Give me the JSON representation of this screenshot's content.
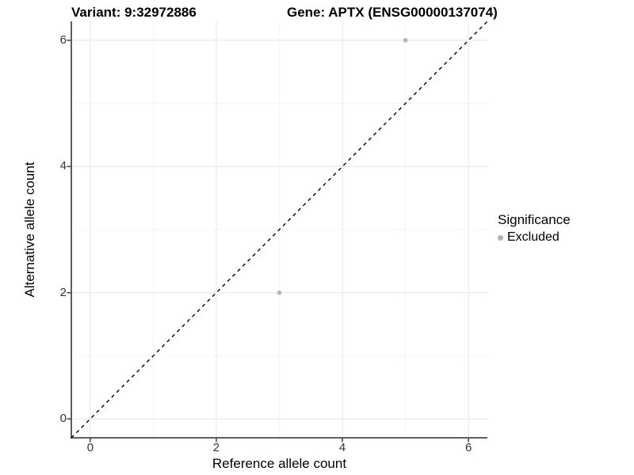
{
  "title": {
    "left": "Variant: 9:32972886",
    "right": "Gene: APTX (ENSG00000137074)"
  },
  "legend": {
    "title": "Significance",
    "items": [
      {
        "label": "Excluded",
        "color": "#b4b4b4"
      }
    ]
  },
  "colors": {
    "background": "#ffffff",
    "grid_major": "#e8e8e8",
    "grid_minor": "#f3f3f3",
    "axis_line": "#4a4a4a",
    "tick_mark": "#4a4a4a",
    "tick_text": "#333333",
    "point": "#b4b4b4",
    "reference_line": "#000000"
  },
  "chart_data": {
    "type": "scatter",
    "title": "Variant: 9:32972886   Gene: APTX (ENSG00000137074)",
    "xlabel": "Reference allele count",
    "ylabel": "Alternative allele count",
    "xlim": [
      -0.3,
      6.3
    ],
    "ylim": [
      -0.3,
      6.3
    ],
    "xticks": [
      0,
      2,
      4,
      6
    ],
    "yticks": [
      0,
      2,
      4,
      6
    ],
    "x_minor_ticks": [
      1,
      3,
      5
    ],
    "y_minor_ticks": [
      1,
      3,
      5
    ],
    "grid": true,
    "legend_position": "right",
    "series": [
      {
        "name": "Excluded",
        "color": "#b4b4b4",
        "points": [
          [
            3,
            2
          ],
          [
            5,
            6
          ]
        ]
      }
    ],
    "reference_line": {
      "type": "identity",
      "slope": 1,
      "intercept": 0,
      "style": "dashed",
      "color": "#000000"
    }
  }
}
